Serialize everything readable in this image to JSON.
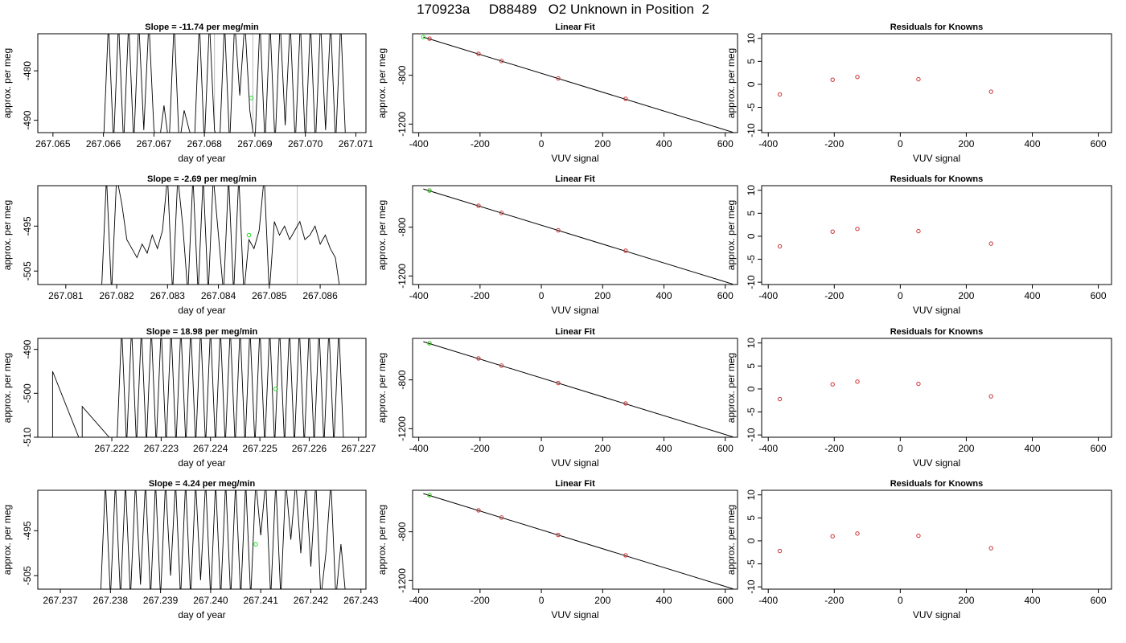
{
  "title": "170923a     D88489   O2 Unknown in Position  2",
  "colors": {
    "line": "#000000",
    "known_point": "#cc3333",
    "unknown_point": "#22dd22",
    "gray_line": "#bbbbbb"
  },
  "chart_data": [
    {
      "type": "line",
      "title": "Slope =  -11.74  per meg/min",
      "xlabel": "day of year",
      "ylabel": "approx. per meg",
      "xlim": [
        267.0647,
        267.0712
      ],
      "ylim": [
        -492.5,
        -472.5
      ],
      "xticks": [
        "267.065",
        "267.066",
        "267.067",
        "267.068",
        "267.069",
        "267.070",
        "267.071"
      ],
      "yticks": [
        "-480",
        "-490"
      ],
      "marker": {
        "x": 267.06893,
        "y": -485.5
      },
      "gray_lines": [
        267.0682,
        267.06896
      ],
      "series": [
        {
          "x": [
            267.066,
            267.0661,
            267.0662,
            267.0663,
            267.0664,
            267.0665,
            267.0666,
            267.0667,
            267.0668,
            267.0669,
            267.067,
            267.0671,
            267.0672,
            267.0673,
            267.0674,
            267.0675,
            267.0676,
            267.0677,
            267.0678,
            267.0679,
            267.068,
            267.0681,
            267.0682,
            267.0683,
            267.0684,
            267.0685,
            267.0686,
            267.0687,
            267.0688,
            267.0689,
            267.069,
            267.0691,
            267.0692,
            267.0693,
            267.0694,
            267.0695,
            267.0696,
            267.0697,
            267.0698,
            267.0699,
            267.07,
            267.0701,
            267.0702,
            267.0703,
            267.0704,
            267.0705,
            267.0706,
            267.0707,
            267.0708
          ],
          "y": [
            -495,
            -470,
            -495,
            -470,
            -495,
            -470,
            -495,
            -470,
            -492,
            -470,
            -492,
            -495,
            -487,
            -495,
            -470,
            -495,
            -488,
            -492,
            -495,
            -470,
            -495,
            -470,
            -492,
            -495,
            -470,
            -495,
            -470,
            -485,
            -470,
            -488,
            -495,
            -470,
            -495,
            -470,
            -495,
            -470,
            -491,
            -470,
            -495,
            -470,
            -495,
            -470,
            -495,
            -470,
            -492,
            -470,
            -495,
            -470,
            -495
          ]
        }
      ]
    },
    {
      "type": "scatter",
      "title": "Linear Fit",
      "xlabel": "VUV signal",
      "ylabel": "approx. per meg",
      "xlim": [
        -420,
        640
      ],
      "ylim": [
        -1270,
        -460
      ],
      "xticks": [
        "-400",
        "-200",
        "0",
        "200",
        "400",
        "600"
      ],
      "yticks": [
        "-800",
        "-1200"
      ],
      "fit_line": {
        "x": [
          -385,
          625
        ],
        "y": [
          -487,
          -1267
        ]
      },
      "known_points": {
        "x": [
          -365,
          -205,
          -130,
          55,
          275
        ],
        "y": [
          -500,
          -624,
          -683,
          -826,
          -993
        ]
      },
      "unknown_points": {
        "x": [
          -385
        ],
        "y": [
          -487
        ]
      }
    },
    {
      "type": "scatter",
      "title": "Residuals for Knowns",
      "xlabel": "VUV signal",
      "ylabel": "approx. per meg",
      "xlim": [
        -420,
        640
      ],
      "ylim": [
        -10.5,
        11
      ],
      "xticks": [
        "-400",
        "-200",
        "0",
        "200",
        "400",
        "600"
      ],
      "yticks": [
        "-10",
        "-5",
        "0",
        "5",
        "10"
      ],
      "points": {
        "x": [
          -365,
          -205,
          -130,
          55,
          275
        ],
        "y": [
          -2.2,
          1.0,
          1.6,
          1.1,
          -1.6
        ]
      }
    },
    {
      "type": "line",
      "title": "Slope =  -2.69  per meg/min",
      "xlabel": "day of year",
      "ylabel": "approx. per meg",
      "xlim": [
        267.08045,
        267.0869
      ],
      "ylim": [
        -508,
        -486
      ],
      "xticks": [
        "267.081",
        "267.082",
        "267.083",
        "267.084",
        "267.085",
        "267.086"
      ],
      "yticks": [
        "-495",
        "-505"
      ],
      "marker": {
        "x": 267.0846,
        "y": -497
      },
      "gray_lines": [
        267.08555
      ],
      "series": [
        {
          "x": [
            267.0817,
            267.0818,
            267.0819,
            267.082,
            267.0821,
            267.0822,
            267.0823,
            267.0824,
            267.0825,
            267.0826,
            267.0827,
            267.0828,
            267.0829,
            267.083,
            267.0831,
            267.0832,
            267.0833,
            267.0834,
            267.0835,
            267.0836,
            267.0837,
            267.0838,
            267.0839,
            267.084,
            267.0841,
            267.0842,
            267.0843,
            267.0844,
            267.0845,
            267.0846,
            267.0847,
            267.0848,
            267.0849,
            267.085,
            267.0851,
            267.0852,
            267.0853,
            267.0854,
            267.0855,
            267.0856,
            267.0857,
            267.0858,
            267.0859,
            267.086,
            267.0861,
            267.0862,
            267.0863,
            267.0864
          ],
          "y": [
            -510,
            -484,
            -510,
            -484,
            -490,
            -498,
            -500,
            -502,
            -499,
            -501,
            -497,
            -500,
            -496,
            -484,
            -510,
            -484,
            -495,
            -510,
            -484,
            -510,
            -484,
            -510,
            -484,
            -497,
            -510,
            -484,
            -510,
            -484,
            -510,
            -498,
            -500,
            -496,
            -484,
            -510,
            -494,
            -497,
            -495,
            -498,
            -496,
            -494,
            -498,
            -497,
            -495,
            -499,
            -497,
            -500,
            -502,
            -510
          ]
        }
      ]
    },
    {
      "type": "scatter",
      "title": "Linear Fit",
      "xlabel": "VUV signal",
      "ylabel": "approx. per meg",
      "xlim": [
        -420,
        640
      ],
      "ylim": [
        -1270,
        -460
      ],
      "xticks": [
        "-400",
        "-200",
        "0",
        "200",
        "400",
        "600"
      ],
      "yticks": [
        "-800",
        "-1200"
      ],
      "fit_line": {
        "x": [
          -385,
          625
        ],
        "y": [
          -487,
          -1267
        ]
      },
      "known_points": {
        "x": [
          -365,
          -205,
          -130,
          55,
          275
        ],
        "y": [
          -500,
          -624,
          -683,
          -826,
          -993
        ]
      },
      "unknown_points": {
        "x": [
          -365
        ],
        "y": [
          -500
        ]
      }
    },
    {
      "type": "scatter",
      "title": "Residuals for Knowns",
      "xlabel": "VUV signal",
      "ylabel": "approx. per meg",
      "xlim": [
        -420,
        640
      ],
      "ylim": [
        -10.5,
        11
      ],
      "xticks": [
        "-400",
        "-200",
        "0",
        "200",
        "400",
        "600"
      ],
      "yticks": [
        "-10",
        "-5",
        "0",
        "5",
        "10"
      ],
      "points": {
        "x": [
          -365,
          -205,
          -130,
          55,
          275
        ],
        "y": [
          -2.2,
          1.0,
          1.6,
          1.1,
          -1.6
        ]
      }
    },
    {
      "type": "line",
      "title": "Slope =  18.98  per meg/min",
      "xlabel": "day of year",
      "ylabel": "approx. per meg",
      "xlim": [
        267.2205,
        267.22715
      ],
      "ylim": [
        -510,
        -487.5
      ],
      "xticks": [
        "267.222",
        "267.223",
        "267.224",
        "267.225",
        "267.226",
        "267.227"
      ],
      "yticks": [
        "-490",
        "-500",
        "-510"
      ],
      "marker": {
        "x": 267.22532,
        "y": -499
      },
      "gray_lines": [],
      "series": [
        {
          "x": [
            267.2208,
            267.2208,
            267.2214,
            267.2214,
            267.2221,
            267.2222,
            267.2223,
            267.2224,
            267.2225,
            267.2226,
            267.2227,
            267.2228,
            267.2229,
            267.223,
            267.2231,
            267.2232,
            267.2233,
            267.2234,
            267.2235,
            267.2236,
            267.2237,
            267.2238,
            267.2239,
            267.224,
            267.2241,
            267.2242,
            267.2243,
            267.2244,
            267.2245,
            267.2246,
            267.2247,
            267.2248,
            267.2249,
            267.225,
            267.2251,
            267.2252,
            267.2253,
            267.2254,
            267.2255,
            267.2256,
            267.2257,
            267.2258,
            267.2259,
            267.226,
            267.2261,
            267.2262,
            267.2263,
            267.2264,
            267.2265,
            267.2266,
            267.2267
          ],
          "y": [
            -512,
            -495,
            -512,
            -503,
            -512,
            -485,
            -512,
            -485,
            -512,
            -485,
            -512,
            -485,
            -512,
            -485,
            -512,
            -485,
            -512,
            -485,
            -512,
            -485,
            -512,
            -485,
            -512,
            -485,
            -512,
            -485,
            -512,
            -485,
            -512,
            -485,
            -512,
            -485,
            -512,
            -485,
            -512,
            -485,
            -512,
            -485,
            -512,
            -485,
            -512,
            -485,
            -512,
            -485,
            -512,
            -485,
            -512,
            -485,
            -512,
            -485,
            -512
          ]
        }
      ]
    },
    {
      "type": "scatter",
      "title": "Linear Fit",
      "xlabel": "VUV signal",
      "ylabel": "approx. per meg",
      "xlim": [
        -420,
        640
      ],
      "ylim": [
        -1270,
        -460
      ],
      "xticks": [
        "-400",
        "-200",
        "0",
        "200",
        "400",
        "600"
      ],
      "yticks": [
        "-800",
        "-1200"
      ],
      "fit_line": {
        "x": [
          -385,
          625
        ],
        "y": [
          -487,
          -1267
        ]
      },
      "known_points": {
        "x": [
          -365,
          -205,
          -130,
          55,
          275
        ],
        "y": [
          -500,
          -624,
          -683,
          -826,
          -993
        ]
      },
      "unknown_points": {
        "x": [
          -365
        ],
        "y": [
          -500
        ]
      }
    },
    {
      "type": "scatter",
      "title": "Residuals for Knowns",
      "xlabel": "VUV signal",
      "ylabel": "approx. per meg",
      "xlim": [
        -420,
        640
      ],
      "ylim": [
        -10.5,
        11
      ],
      "xticks": [
        "-400",
        "-200",
        "0",
        "200",
        "400",
        "600"
      ],
      "yticks": [
        "-10",
        "-5",
        "0",
        "5",
        "10"
      ],
      "points": {
        "x": [
          -365,
          -205,
          -130,
          55,
          275
        ],
        "y": [
          -2.2,
          1.0,
          1.6,
          1.1,
          -1.6
        ]
      }
    },
    {
      "type": "line",
      "title": "Slope =  4.24  per meg/min",
      "xlabel": "day of year",
      "ylabel": "approx. per meg",
      "xlim": [
        267.23655,
        267.2431
      ],
      "ylim": [
        -508,
        -486
      ],
      "xticks": [
        "267.237",
        "267.238",
        "267.239",
        "267.240",
        "267.241",
        "267.242",
        "267.243"
      ],
      "yticks": [
        "-495",
        "-505"
      ],
      "marker": {
        "x": 267.2409,
        "y": -498
      },
      "gray_lines": [],
      "series": [
        {
          "x": [
            267.2378,
            267.2379,
            267.238,
            267.2381,
            267.2382,
            267.2383,
            267.2384,
            267.2385,
            267.2386,
            267.2387,
            267.2388,
            267.2389,
            267.239,
            267.2391,
            267.2392,
            267.2393,
            267.2394,
            267.2395,
            267.2396,
            267.2397,
            267.2398,
            267.2399,
            267.24,
            267.2401,
            267.2402,
            267.2403,
            267.2404,
            267.2405,
            267.2406,
            267.2407,
            267.2408,
            267.2409,
            267.241,
            267.2411,
            267.2412,
            267.2413,
            267.2414,
            267.2415,
            267.2416,
            267.2417,
            267.2418,
            267.2419,
            267.242,
            267.2421,
            267.2422,
            267.2423,
            267.2424,
            267.2425,
            267.2426,
            267.2427
          ],
          "y": [
            -510,
            -484,
            -510,
            -484,
            -510,
            -484,
            -510,
            -484,
            -507,
            -484,
            -510,
            -484,
            -510,
            -484,
            -505,
            -484,
            -510,
            -484,
            -510,
            -484,
            -506,
            -484,
            -510,
            -484,
            -510,
            -484,
            -510,
            -484,
            -510,
            -484,
            -510,
            -484,
            -496,
            -484,
            -510,
            -484,
            -510,
            -484,
            -497,
            -484,
            -500,
            -484,
            -503,
            -484,
            -510,
            -500,
            -484,
            -510,
            -498,
            -510
          ]
        }
      ]
    },
    {
      "type": "scatter",
      "title": "Linear Fit",
      "xlabel": "VUV signal",
      "ylabel": "approx. per meg",
      "xlim": [
        -420,
        640
      ],
      "ylim": [
        -1270,
        -460
      ],
      "xticks": [
        "-400",
        "-200",
        "0",
        "200",
        "400",
        "600"
      ],
      "yticks": [
        "-800",
        "-1200"
      ],
      "fit_line": {
        "x": [
          -385,
          625
        ],
        "y": [
          -487,
          -1267
        ]
      },
      "known_points": {
        "x": [
          -365,
          -205,
          -130,
          55,
          275
        ],
        "y": [
          -500,
          -624,
          -683,
          -826,
          -993
        ]
      },
      "unknown_points": {
        "x": [
          -365
        ],
        "y": [
          -500
        ]
      }
    },
    {
      "type": "scatter",
      "title": "Residuals for Knowns",
      "xlabel": "VUV signal",
      "ylabel": "approx. per meg",
      "xlim": [
        -420,
        640
      ],
      "ylim": [
        -10.5,
        11
      ],
      "xticks": [
        "-400",
        "-200",
        "0",
        "200",
        "400",
        "600"
      ],
      "yticks": [
        "-10",
        "-5",
        "0",
        "5",
        "10"
      ],
      "points": {
        "x": [
          -365,
          -205,
          -130,
          55,
          275
        ],
        "y": [
          -2.2,
          1.0,
          1.6,
          1.1,
          -1.6
        ]
      }
    }
  ]
}
